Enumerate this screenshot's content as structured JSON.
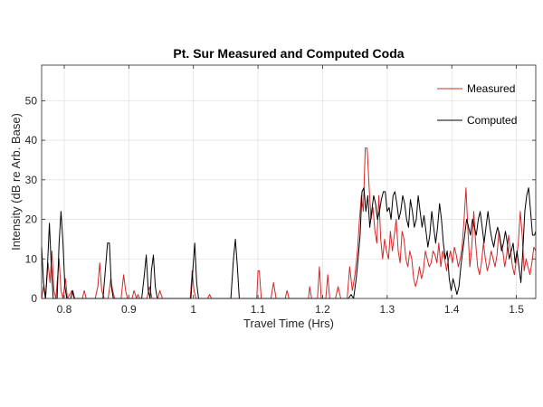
{
  "chart_data": {
    "type": "line",
    "title": "Pt. Sur Measured and Computed Coda",
    "xlabel": "Travel Time (Hrs)",
    "ylabel": "Intensity (dB re Arb. Base)",
    "xlim": [
      0.765,
      1.53
    ],
    "ylim": [
      0,
      59
    ],
    "xticks": [
      "0.8",
      "0.9",
      "1",
      "1.1",
      "1.2",
      "1.3",
      "1.4",
      "1.5"
    ],
    "yticks": [
      "0",
      "10",
      "20",
      "30",
      "40",
      "50"
    ],
    "grid": true,
    "legend_position": "top-right",
    "series": [
      {
        "name": "Measured",
        "color": "#d62728",
        "points": [
          [
            0.765,
            0
          ],
          [
            0.768,
            3
          ],
          [
            0.771,
            0
          ],
          [
            0.775,
            9
          ],
          [
            0.778,
            4
          ],
          [
            0.781,
            12
          ],
          [
            0.784,
            2
          ],
          [
            0.787,
            0
          ],
          [
            0.792,
            10
          ],
          [
            0.795,
            2
          ],
          [
            0.798,
            0
          ],
          [
            0.802,
            5
          ],
          [
            0.805,
            0
          ],
          [
            0.812,
            2
          ],
          [
            0.815,
            0
          ],
          [
            0.828,
            0
          ],
          [
            0.831,
            2
          ],
          [
            0.834,
            0
          ],
          [
            0.848,
            0
          ],
          [
            0.852,
            3
          ],
          [
            0.855,
            9
          ],
          [
            0.858,
            2
          ],
          [
            0.862,
            0
          ],
          [
            0.868,
            0
          ],
          [
            0.872,
            5
          ],
          [
            0.875,
            2
          ],
          [
            0.878,
            0
          ],
          [
            0.888,
            0
          ],
          [
            0.892,
            6
          ],
          [
            0.895,
            2
          ],
          [
            0.898,
            0
          ],
          [
            0.905,
            0
          ],
          [
            0.908,
            2
          ],
          [
            0.912,
            0
          ],
          [
            0.914,
            1
          ],
          [
            0.917,
            0
          ],
          [
            0.928,
            0
          ],
          [
            0.932,
            3
          ],
          [
            0.936,
            0
          ],
          [
            0.945,
            0
          ],
          [
            0.948,
            2
          ],
          [
            0.952,
            0
          ],
          [
            0.995,
            0
          ],
          [
            0.998,
            7
          ],
          [
            1.001,
            2
          ],
          [
            1.004,
            0
          ],
          [
            1.022,
            0
          ],
          [
            1.025,
            1
          ],
          [
            1.028,
            0
          ],
          [
            1.08,
            0
          ],
          [
            1.098,
            0
          ],
          [
            1.1,
            7
          ],
          [
            1.102,
            7
          ],
          [
            1.105,
            0
          ],
          [
            1.12,
            0
          ],
          [
            1.124,
            4
          ],
          [
            1.128,
            0
          ],
          [
            1.142,
            0
          ],
          [
            1.145,
            2
          ],
          [
            1.148,
            0
          ],
          [
            1.178,
            0
          ],
          [
            1.18,
            3
          ],
          [
            1.183,
            0
          ],
          [
            1.192,
            0
          ],
          [
            1.195,
            8
          ],
          [
            1.198,
            0
          ],
          [
            1.205,
            0
          ],
          [
            1.208,
            6
          ],
          [
            1.211,
            0
          ],
          [
            1.22,
            0
          ],
          [
            1.224,
            3
          ],
          [
            1.228,
            0
          ],
          [
            1.238,
            0
          ],
          [
            1.242,
            8
          ],
          [
            1.246,
            2
          ],
          [
            1.25,
            6
          ],
          [
            1.254,
            12
          ],
          [
            1.257,
            20
          ],
          [
            1.26,
            26
          ],
          [
            1.263,
            22
          ],
          [
            1.266,
            38
          ],
          [
            1.269,
            38
          ],
          [
            1.272,
            28
          ],
          [
            1.275,
            20
          ],
          [
            1.278,
            23
          ],
          [
            1.281,
            17
          ],
          [
            1.284,
            14
          ],
          [
            1.287,
            26
          ],
          [
            1.29,
            15
          ],
          [
            1.293,
            10
          ],
          [
            1.296,
            15
          ],
          [
            1.299,
            12
          ],
          [
            1.302,
            10
          ],
          [
            1.305,
            17
          ],
          [
            1.308,
            12
          ],
          [
            1.311,
            16
          ],
          [
            1.314,
            20
          ],
          [
            1.317,
            12
          ],
          [
            1.32,
            9
          ],
          [
            1.323,
            17
          ],
          [
            1.326,
            15
          ],
          [
            1.329,
            10
          ],
          [
            1.332,
            8
          ],
          [
            1.335,
            12
          ],
          [
            1.338,
            10
          ],
          [
            1.341,
            5
          ],
          [
            1.344,
            3
          ],
          [
            1.347,
            5
          ],
          [
            1.35,
            8
          ],
          [
            1.353,
            5
          ],
          [
            1.356,
            7
          ],
          [
            1.359,
            12
          ],
          [
            1.362,
            10
          ],
          [
            1.365,
            8
          ],
          [
            1.368,
            9
          ],
          [
            1.371,
            12
          ],
          [
            1.374,
            11
          ],
          [
            1.377,
            9
          ],
          [
            1.38,
            14
          ],
          [
            1.383,
            8
          ],
          [
            1.386,
            12
          ],
          [
            1.389,
            10
          ],
          [
            1.392,
            7
          ],
          [
            1.395,
            10
          ],
          [
            1.398,
            12
          ],
          [
            1.401,
            9
          ],
          [
            1.404,
            13
          ],
          [
            1.407,
            11
          ],
          [
            1.41,
            8
          ],
          [
            1.413,
            10
          ],
          [
            1.416,
            13
          ],
          [
            1.419,
            20
          ],
          [
            1.422,
            28
          ],
          [
            1.425,
            17
          ],
          [
            1.428,
            8
          ],
          [
            1.431,
            13
          ],
          [
            1.434,
            22
          ],
          [
            1.437,
            14
          ],
          [
            1.44,
            8
          ],
          [
            1.443,
            6
          ],
          [
            1.446,
            9
          ],
          [
            1.449,
            14
          ],
          [
            1.452,
            10
          ],
          [
            1.455,
            7
          ],
          [
            1.458,
            9
          ],
          [
            1.461,
            12
          ],
          [
            1.464,
            10
          ],
          [
            1.467,
            8
          ],
          [
            1.47,
            11
          ],
          [
            1.473,
            17
          ],
          [
            1.476,
            14
          ],
          [
            1.479,
            12
          ],
          [
            1.482,
            8
          ],
          [
            1.485,
            11
          ],
          [
            1.488,
            16
          ],
          [
            1.491,
            12
          ],
          [
            1.494,
            8
          ],
          [
            1.497,
            6
          ],
          [
            1.5,
            10
          ],
          [
            1.503,
            14
          ],
          [
            1.506,
            22
          ],
          [
            1.509,
            16
          ],
          [
            1.512,
            7
          ],
          [
            1.515,
            10
          ],
          [
            1.518,
            8
          ],
          [
            1.521,
            6
          ],
          [
            1.524,
            9
          ],
          [
            1.527,
            13
          ],
          [
            1.53,
            12
          ]
        ]
      },
      {
        "name": "Computed",
        "color": "#000000",
        "points": [
          [
            0.765,
            13
          ],
          [
            0.768,
            4
          ],
          [
            0.771,
            0
          ],
          [
            0.774,
            8
          ],
          [
            0.777,
            19
          ],
          [
            0.78,
            8
          ],
          [
            0.783,
            0
          ],
          [
            0.789,
            0
          ],
          [
            0.792,
            14
          ],
          [
            0.795,
            22
          ],
          [
            0.798,
            14
          ],
          [
            0.801,
            3
          ],
          [
            0.804,
            0
          ],
          [
            0.81,
            0
          ],
          [
            0.813,
            2
          ],
          [
            0.816,
            0
          ],
          [
            0.86,
            0
          ],
          [
            0.864,
            8
          ],
          [
            0.867,
            14
          ],
          [
            0.87,
            14
          ],
          [
            0.873,
            3
          ],
          [
            0.876,
            0
          ],
          [
            0.92,
            0
          ],
          [
            0.924,
            6
          ],
          [
            0.927,
            11
          ],
          [
            0.93,
            2
          ],
          [
            0.933,
            0
          ],
          [
            0.935,
            7
          ],
          [
            0.938,
            11
          ],
          [
            0.941,
            3
          ],
          [
            0.944,
            0
          ],
          [
            0.996,
            0
          ],
          [
            0.999,
            7
          ],
          [
            1.002,
            14
          ],
          [
            1.005,
            4
          ],
          [
            1.008,
            0
          ],
          [
            1.058,
            0
          ],
          [
            1.062,
            10
          ],
          [
            1.065,
            15
          ],
          [
            1.068,
            8
          ],
          [
            1.071,
            0
          ],
          [
            1.24,
            0
          ],
          [
            1.244,
            1
          ],
          [
            1.248,
            0
          ],
          [
            1.252,
            5
          ],
          [
            1.255,
            10
          ],
          [
            1.258,
            16
          ],
          [
            1.261,
            27
          ],
          [
            1.264,
            28
          ],
          [
            1.267,
            22
          ],
          [
            1.27,
            26
          ],
          [
            1.273,
            18
          ],
          [
            1.276,
            22
          ],
          [
            1.279,
            26
          ],
          [
            1.282,
            24
          ],
          [
            1.285,
            20
          ],
          [
            1.288,
            22
          ],
          [
            1.291,
            25
          ],
          [
            1.294,
            27
          ],
          [
            1.297,
            27
          ],
          [
            1.3,
            22
          ],
          [
            1.303,
            23
          ],
          [
            1.306,
            20
          ],
          [
            1.309,
            26
          ],
          [
            1.312,
            27
          ],
          [
            1.315,
            24
          ],
          [
            1.318,
            20
          ],
          [
            1.321,
            22
          ],
          [
            1.324,
            26
          ],
          [
            1.327,
            24
          ],
          [
            1.33,
            20
          ],
          [
            1.333,
            18
          ],
          [
            1.336,
            25
          ],
          [
            1.339,
            22
          ],
          [
            1.342,
            18
          ],
          [
            1.345,
            20
          ],
          [
            1.348,
            26
          ],
          [
            1.351,
            22
          ],
          [
            1.354,
            18
          ],
          [
            1.357,
            21
          ],
          [
            1.36,
            17
          ],
          [
            1.363,
            13
          ],
          [
            1.366,
            16
          ],
          [
            1.369,
            22
          ],
          [
            1.372,
            18
          ],
          [
            1.375,
            14
          ],
          [
            1.378,
            18
          ],
          [
            1.381,
            24
          ],
          [
            1.384,
            20
          ],
          [
            1.387,
            14
          ],
          [
            1.39,
            10
          ],
          [
            1.393,
            12
          ],
          [
            1.396,
            5
          ],
          [
            1.399,
            2
          ],
          [
            1.402,
            5
          ],
          [
            1.405,
            3
          ],
          [
            1.408,
            1
          ],
          [
            1.411,
            3
          ],
          [
            1.414,
            8
          ],
          [
            1.417,
            12
          ],
          [
            1.42,
            16
          ],
          [
            1.423,
            20
          ],
          [
            1.426,
            18
          ],
          [
            1.429,
            16
          ],
          [
            1.432,
            20
          ],
          [
            1.435,
            18
          ],
          [
            1.438,
            16
          ],
          [
            1.441,
            20
          ],
          [
            1.444,
            22
          ],
          [
            1.447,
            18
          ],
          [
            1.45,
            14
          ],
          [
            1.453,
            18
          ],
          [
            1.456,
            22
          ],
          [
            1.459,
            18
          ],
          [
            1.462,
            15
          ],
          [
            1.465,
            13
          ],
          [
            1.468,
            16
          ],
          [
            1.471,
            18
          ],
          [
            1.474,
            16
          ],
          [
            1.477,
            12
          ],
          [
            1.48,
            14
          ],
          [
            1.483,
            17
          ],
          [
            1.486,
            14
          ],
          [
            1.489,
            10
          ],
          [
            1.492,
            12
          ],
          [
            1.495,
            14
          ],
          [
            1.498,
            9
          ],
          [
            1.501,
            12
          ],
          [
            1.504,
            8
          ],
          [
            1.507,
            4
          ],
          [
            1.51,
            12
          ],
          [
            1.513,
            22
          ],
          [
            1.516,
            26
          ],
          [
            1.519,
            28
          ],
          [
            1.522,
            22
          ],
          [
            1.525,
            16
          ],
          [
            1.528,
            16
          ],
          [
            1.53,
            17
          ]
        ]
      }
    ]
  }
}
